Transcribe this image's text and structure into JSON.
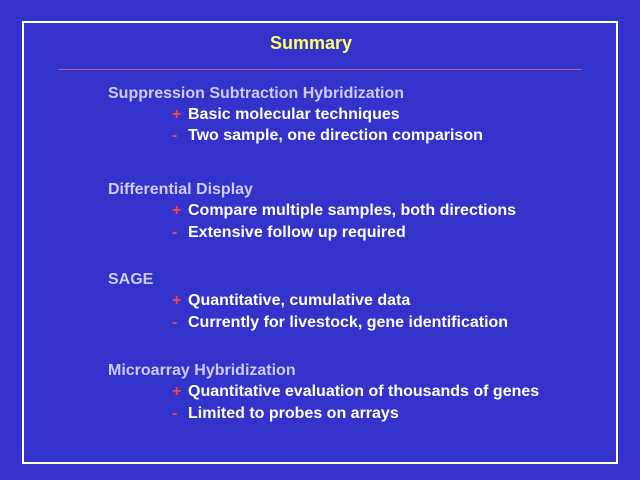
{
  "title": "Summary",
  "colors": {
    "background": "#3333cc",
    "title": "#ffff66",
    "heading": "#ccccff",
    "bullet": "#ff4444",
    "text": "#ffffff"
  },
  "sections": [
    {
      "heading": "Suppression Subtraction Hybridization",
      "items": [
        {
          "mark": "+",
          "text": "Basic molecular techniques"
        },
        {
          "mark": "-",
          "text": "Two sample, one direction comparison"
        }
      ]
    },
    {
      "heading": "Differential Display",
      "items": [
        {
          "mark": "+",
          "text": "Compare multiple samples, both directions"
        },
        {
          "mark": "-",
          "text": "Extensive follow up required"
        }
      ]
    },
    {
      "heading": "SAGE",
      "items": [
        {
          "mark": "+",
          "text": "Quantitative, cumulative data"
        },
        {
          "mark": "-",
          "text": "Currently for livestock, gene identification"
        }
      ]
    },
    {
      "heading": "Microarray Hybridization",
      "items": [
        {
          "mark": "+",
          "text": "Quantitative evaluation of thousands of genes"
        },
        {
          "mark": "-",
          "text": "Limited to probes on arrays"
        }
      ]
    }
  ]
}
